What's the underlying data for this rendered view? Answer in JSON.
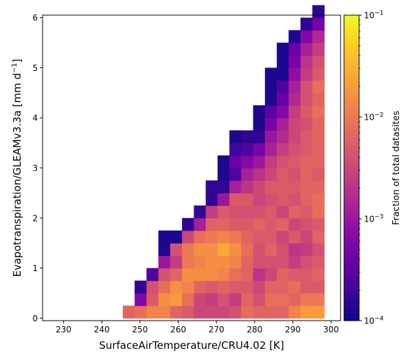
{
  "chart_data": {
    "type": "heatmap",
    "xlabel": "SurfaceAirTemperature/CRU4.02 [K]",
    "ylabel": "Evapotranspiration/GLEAMv3.3a [mm d",
    "ylabel_sup": "−1",
    "ylabel_end": "]",
    "xlim": [
      224.5,
      302.5
    ],
    "ylim": [
      -0.05,
      6.05
    ],
    "x_ticks": [
      230,
      240,
      250,
      260,
      270,
      280,
      290,
      300
    ],
    "x_tick_labels": [
      "230",
      "240",
      "250",
      "260",
      "270",
      "280",
      "290",
      "300"
    ],
    "y_ticks": [
      0,
      1,
      2,
      3,
      4,
      5,
      6
    ],
    "y_tick_labels": [
      "0",
      "1",
      "2",
      "3",
      "4",
      "5",
      "6"
    ],
    "x_bins_start": 245.5,
    "x_bin_width": 3.1,
    "y_bin_width": 0.25,
    "colorbar": {
      "label": "Fraction of total datasites",
      "scale": "log",
      "range": [
        0.0001,
        0.1
      ],
      "colormap": "plasma",
      "tick_bases": [
        "10",
        "10",
        "10",
        "10"
      ],
      "tick_exponents": [
        "−4",
        "−3",
        "−2",
        "−1"
      ]
    },
    "cells_log10": [
      [
        -2.2,
        -2.1,
        -1.9,
        -1.9,
        -2.2,
        -2.3,
        -2.5,
        -2.5,
        -2.5,
        -2.4,
        -2.1,
        -2.2,
        -2.2,
        -2.2,
        -1.9,
        -1.7,
        -1.7
      ],
      [
        null,
        -3.2,
        -2.3,
        -1.8,
        -1.7,
        -2.1,
        -2.5,
        -2.6,
        -2.4,
        -2.6,
        -2.2,
        -2.4,
        -2.1,
        -2.1,
        -2.2,
        -2.0,
        -2.0
      ],
      [
        null,
        -3.8,
        -2.4,
        -2.1,
        -1.8,
        -1.9,
        -2.2,
        -2.3,
        -2.2,
        -2.3,
        -2.3,
        -2.5,
        -2.2,
        -2.2,
        -2.1,
        -2.3,
        -2.3
      ],
      [
        null,
        null,
        -3.6,
        -2.4,
        -2.2,
        -1.8,
        -1.8,
        -1.8,
        -1.9,
        -2.1,
        -2.2,
        -2.7,
        -2.5,
        -2.2,
        -2.3,
        -2.3,
        -2.2
      ],
      [
        null,
        null,
        null,
        -3.0,
        -2.6,
        -2.0,
        -1.9,
        -1.8,
        -1.8,
        -1.9,
        -2.2,
        -2.4,
        -2.4,
        -2.4,
        -2.6,
        -2.4,
        -2.3
      ],
      [
        null,
        null,
        null,
        -3.9,
        -2.4,
        -2.0,
        -1.8,
        -1.8,
        -1.6,
        -1.8,
        -2.1,
        -2.4,
        -2.2,
        -2.4,
        -2.7,
        -2.6,
        -2.4
      ],
      [
        null,
        null,
        null,
        -3.9,
        -3.9,
        -2.5,
        -2.1,
        -2.0,
        -1.9,
        -2.0,
        -2.2,
        -2.3,
        -2.3,
        -2.5,
        -2.3,
        -2.5,
        -2.2
      ],
      [
        null,
        null,
        null,
        null,
        null,
        -3.8,
        -2.9,
        -2.2,
        -2.2,
        -2.3,
        -2.3,
        -2.2,
        -2.3,
        -2.2,
        -2.5,
        -2.4,
        -2.3
      ],
      [
        null,
        null,
        null,
        null,
        null,
        null,
        -3.8,
        -2.6,
        -2.3,
        -2.4,
        -2.4,
        -2.4,
        -2.3,
        -2.5,
        -2.2,
        -2.3,
        -2.1
      ],
      [
        null,
        null,
        null,
        null,
        null,
        null,
        null,
        -3.8,
        -3.0,
        -2.3,
        -2.3,
        -2.5,
        -2.4,
        -2.3,
        -2.4,
        -2.2,
        -2.1
      ],
      [
        null,
        null,
        null,
        null,
        null,
        null,
        null,
        -3.8,
        -3.8,
        -2.9,
        -2.7,
        -2.5,
        -2.3,
        -2.3,
        -2.3,
        -2.2,
        -2.2
      ],
      [
        null,
        null,
        null,
        null,
        null,
        null,
        null,
        null,
        -3.9,
        -3.6,
        -2.9,
        -2.7,
        -2.5,
        -2.3,
        -2.4,
        -2.2,
        -2.3
      ],
      [
        null,
        null,
        null,
        null,
        null,
        null,
        null,
        null,
        -3.9,
        -3.4,
        -3.2,
        -3.0,
        -2.6,
        -2.4,
        -2.3,
        -2.2,
        -2.2
      ],
      [
        null,
        null,
        null,
        null,
        null,
        null,
        null,
        null,
        null,
        -3.7,
        -3.6,
        -3.3,
        -2.9,
        -2.6,
        -2.4,
        -2.3,
        -2.2
      ],
      [
        null,
        null,
        null,
        null,
        null,
        null,
        null,
        null,
        null,
        -3.9,
        -3.8,
        -3.8,
        -3.0,
        -2.8,
        -2.5,
        -2.3,
        -2.2
      ],
      [
        null,
        null,
        null,
        null,
        null,
        null,
        null,
        null,
        null,
        null,
        null,
        -3.9,
        -3.3,
        -2.9,
        -2.5,
        -2.4,
        -2.2
      ],
      [
        null,
        null,
        null,
        null,
        null,
        null,
        null,
        null,
        null,
        null,
        null,
        -3.9,
        -3.5,
        -3.2,
        -2.6,
        -2.3,
        -2.1
      ],
      [
        null,
        null,
        null,
        null,
        null,
        null,
        null,
        null,
        null,
        null,
        null,
        null,
        -3.9,
        -3.4,
        -2.8,
        -2.4,
        -2.2
      ],
      [
        null,
        null,
        null,
        null,
        null,
        null,
        null,
        null,
        null,
        null,
        null,
        null,
        -3.9,
        -3.6,
        -2.9,
        -2.4,
        -2.1
      ],
      [
        null,
        null,
        null,
        null,
        null,
        null,
        null,
        null,
        null,
        null,
        null,
        null,
        -3.9,
        -3.9,
        -3.1,
        -2.6,
        -2.3
      ],
      [
        null,
        null,
        null,
        null,
        null,
        null,
        null,
        null,
        null,
        null,
        null,
        null,
        null,
        -3.9,
        -3.3,
        -2.7,
        -2.4
      ],
      [
        null,
        null,
        null,
        null,
        null,
        null,
        null,
        null,
        null,
        null,
        null,
        null,
        null,
        -3.9,
        -3.4,
        -2.9,
        -2.6
      ],
      [
        null,
        null,
        null,
        null,
        null,
        null,
        null,
        null,
        null,
        null,
        null,
        null,
        null,
        null,
        -3.9,
        -3.2,
        -2.8
      ],
      [
        null,
        null,
        null,
        null,
        null,
        null,
        null,
        null,
        null,
        null,
        null,
        null,
        null,
        null,
        null,
        -3.8,
        -3.3
      ],
      [
        null,
        null,
        null,
        null,
        null,
        null,
        null,
        null,
        null,
        null,
        null,
        null,
        null,
        null,
        null,
        null,
        -3.8
      ]
    ]
  }
}
